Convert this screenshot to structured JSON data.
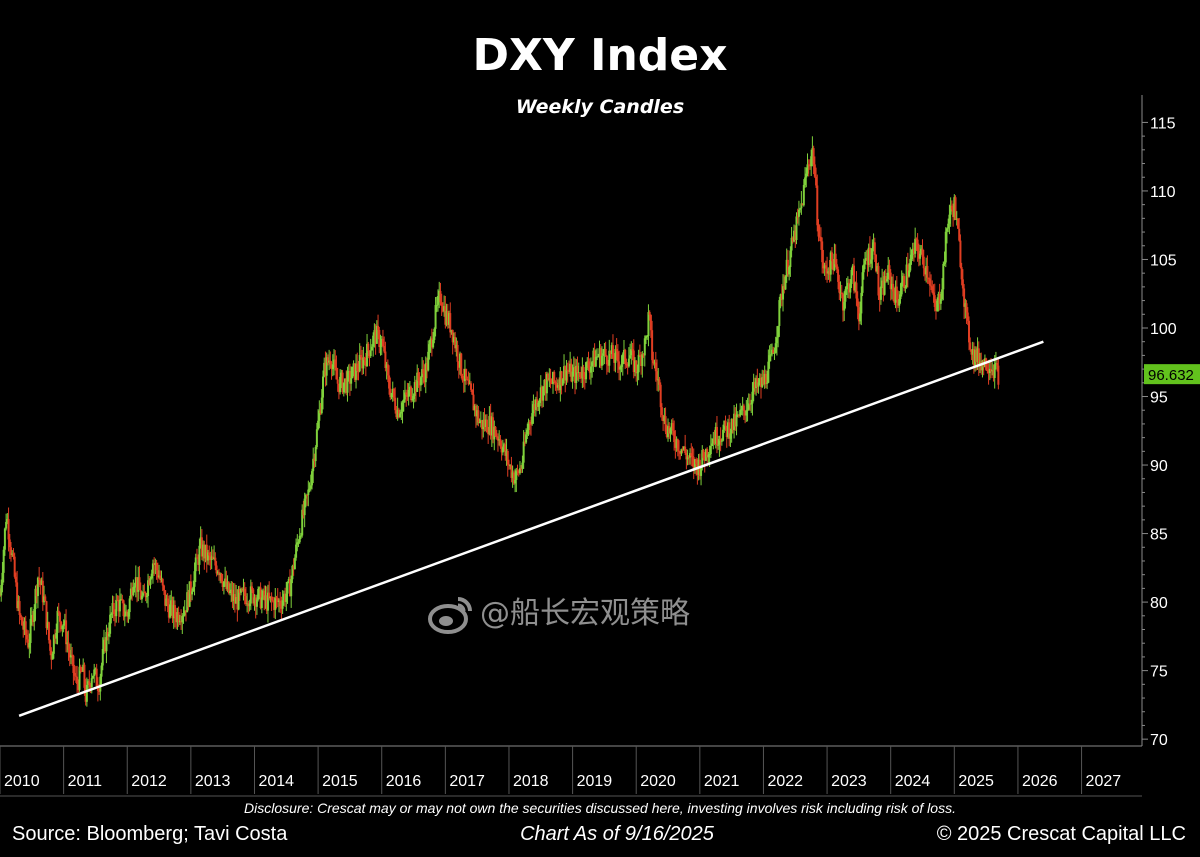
{
  "title": "DXY Index",
  "subtitle": "Weekly Candles",
  "watermark": "@船长宏观策略",
  "footer": {
    "disclosure": "Disclosure: Crescat may or may not own the securities discussed here, investing involves risk including risk of loss.",
    "source": "Source: Bloomberg; Tavi Costa",
    "as_of": "Chart As of 9/16/2025",
    "copyright": "© 2025 Crescat Capital LLC"
  },
  "colors": {
    "up": "#7fd13b",
    "down": "#e03e22",
    "trendline": "#ffffff",
    "last_price_bg": "#62c21d",
    "axis": "#8a8a8a"
  },
  "chart_data": {
    "type": "line",
    "description_type": "candlestick",
    "x_range": [
      2010,
      2027.95
    ],
    "ylim": [
      69.5,
      117
    ],
    "y_ticks": [
      70,
      75,
      80,
      85,
      90,
      95,
      100,
      105,
      110,
      115
    ],
    "x_ticks": [
      "2010",
      "2011",
      "2012",
      "2013",
      "2014",
      "2015",
      "2016",
      "2017",
      "2018",
      "2019",
      "2020",
      "2021",
      "2022",
      "2023",
      "2024",
      "2025",
      "2026",
      "2027"
    ],
    "last_price": 96.632,
    "trendline": {
      "x": [
        2010.3,
        2026.4
      ],
      "y": [
        71.7,
        99.0
      ]
    },
    "series": [
      {
        "x": [
          2010.0,
          2010.1,
          2010.2,
          2010.3,
          2010.45,
          2010.6,
          2010.7,
          2010.8,
          2010.9,
          2011.0,
          2011.1,
          2011.2,
          2011.3,
          2011.35,
          2011.45,
          2011.55,
          2011.65,
          2011.75,
          2011.85,
          2012.0,
          2012.1,
          2012.25,
          2012.4,
          2012.5,
          2012.6,
          2012.75,
          2012.9,
          2013.0,
          2013.15,
          2013.3,
          2013.45,
          2013.55,
          2013.7,
          2013.85,
          2014.0,
          2014.2,
          2014.4,
          2014.55,
          2014.7,
          2014.85,
          2015.0,
          2015.1,
          2015.2,
          2015.3,
          2015.45,
          2015.6,
          2015.75,
          2015.9,
          2016.0,
          2016.1,
          2016.25,
          2016.4,
          2016.55,
          2016.7,
          2016.85,
          2016.93,
          2017.0,
          2017.1,
          2017.25,
          2017.4,
          2017.55,
          2017.7,
          2017.85,
          2018.0,
          2018.1,
          2018.2,
          2018.3,
          2018.45,
          2018.6,
          2018.75,
          2018.9,
          2019.0,
          2019.2,
          2019.4,
          2019.6,
          2019.75,
          2019.9,
          2020.0,
          2020.15,
          2020.2,
          2020.25,
          2020.35,
          2020.45,
          2020.6,
          2020.75,
          2020.9,
          2021.0,
          2021.2,
          2021.4,
          2021.55,
          2021.7,
          2021.85,
          2022.0,
          2022.15,
          2022.3,
          2022.45,
          2022.6,
          2022.7,
          2022.78,
          2022.85,
          2022.95,
          2023.1,
          2023.25,
          2023.4,
          2023.5,
          2023.6,
          2023.75,
          2023.82,
          2023.95,
          2024.1,
          2024.25,
          2024.4,
          2024.5,
          2024.6,
          2024.7,
          2024.8,
          2024.9,
          2025.0,
          2025.1,
          2025.2,
          2025.3,
          2025.45,
          2025.55,
          2025.7
        ],
        "y": [
          80.5,
          86.5,
          83,
          79,
          77,
          82,
          80,
          76,
          79,
          78.5,
          76,
          74,
          75,
          73,
          75,
          74,
          77,
          79,
          80,
          79,
          82,
          80,
          83,
          82,
          80,
          79,
          79.5,
          81,
          84,
          83,
          82.5,
          81,
          80,
          80.5,
          80.5,
          80,
          80,
          81,
          85,
          88,
          93,
          97,
          98,
          96,
          96,
          97,
          98,
          99.5,
          99,
          96,
          94,
          95,
          96,
          97,
          101,
          102.5,
          101,
          100,
          97,
          95,
          93,
          93,
          92,
          90,
          89,
          90,
          93,
          95,
          96,
          96,
          97,
          96.5,
          97,
          98,
          98,
          97.5,
          98,
          97,
          99,
          101,
          98,
          96,
          93,
          92,
          91,
          90,
          90,
          92,
          92.5,
          93,
          94,
          95.5,
          96,
          98,
          103,
          106,
          109,
          112,
          113,
          108,
          104,
          105,
          102,
          104,
          101,
          105,
          106,
          102,
          104,
          102,
          104,
          106,
          105,
          104,
          101,
          103,
          108,
          109,
          105,
          100,
          98,
          97.5,
          97.5,
          96.6
        ]
      }
    ]
  }
}
